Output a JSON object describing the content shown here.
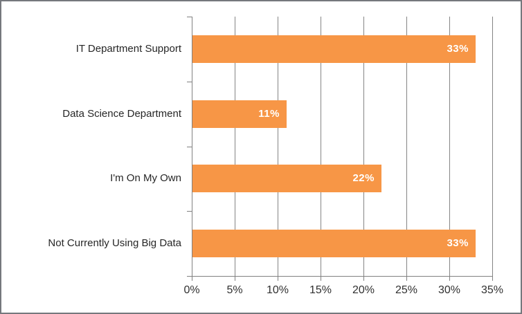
{
  "chart_data": {
    "type": "bar",
    "orientation": "horizontal",
    "title": "",
    "xlabel": "",
    "ylabel": "",
    "categories": [
      "IT Department Support",
      "Data Science Department",
      "I'm On My Own",
      "Not Currently Using Big Data"
    ],
    "values": [
      33,
      11,
      22,
      33
    ],
    "value_labels": [
      "33%",
      "11%",
      "22%",
      "33%"
    ],
    "x_tick_labels": [
      "0%",
      "5%",
      "10%",
      "15%",
      "20%",
      "25%",
      "30%",
      "35%"
    ],
    "xlim": [
      0,
      35
    ],
    "x_tick_step": 5,
    "grid": "vertical-gridlines-on",
    "legend": "none",
    "colors": {
      "bar": "#F79646",
      "gridline": "#848484",
      "axis": "#808080",
      "category_label": "#262626",
      "tick_label": "#303030",
      "value_label": "#FFFFFF",
      "frame_border": "#75787D",
      "background": "#FFFFFF"
    }
  }
}
